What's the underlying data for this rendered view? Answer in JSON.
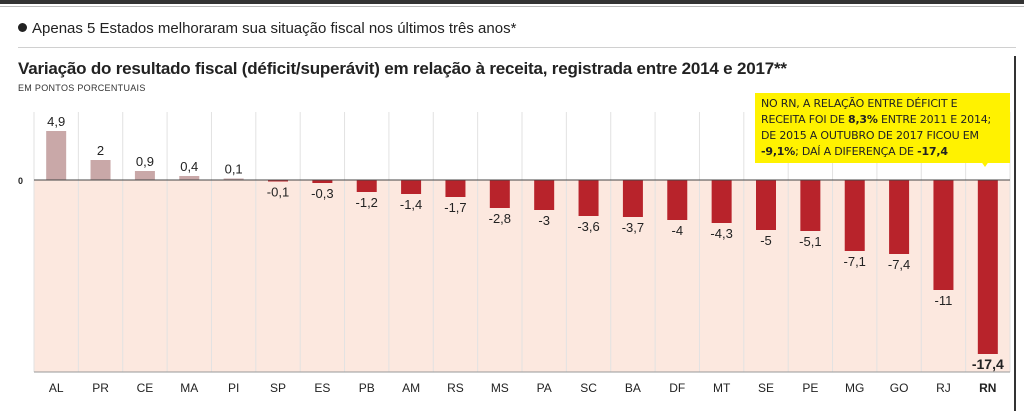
{
  "headline": "Apenas 5 Estados melhoraram sua situação fiscal nos últimos três anos*",
  "chart_data": {
    "type": "bar",
    "title": "Variação do resultado fiscal (déficit/superávit) em relação à receita, registrada entre 2014 e 2017**",
    "ylabel": "EM PONTOS PORCENTUAIS",
    "xlabel": "",
    "y_zero_label": "0",
    "categories": [
      "AL",
      "PR",
      "CE",
      "MA",
      "PI",
      "SP",
      "ES",
      "PB",
      "AM",
      "RS",
      "MS",
      "PA",
      "SC",
      "BA",
      "DF",
      "MT",
      "SE",
      "PE",
      "MG",
      "GO",
      "RJ",
      "RN"
    ],
    "values": [
      4.9,
      2,
      0.9,
      0.4,
      0.1,
      -0.1,
      -0.3,
      -1.2,
      -1.4,
      -1.7,
      -2.8,
      -3,
      -3.6,
      -3.7,
      -4,
      -4.3,
      -5,
      -5.1,
      -7.1,
      -7.4,
      -11,
      -17.4
    ],
    "value_labels": [
      "4,9",
      "2",
      "0,9",
      "0,4",
      "0,1",
      "-0,1",
      "-0,3",
      "-1,2",
      "-1,4",
      "-1,7",
      "-2,8",
      "-3",
      "-3,6",
      "-3,7",
      "-4",
      "-4,3",
      "-5",
      "-5,1",
      "-7,1",
      "-7,4",
      "-11",
      "-17,4"
    ],
    "highlight": "RN",
    "colors": {
      "positive": "#c9a8a8",
      "negative": "#b8232b",
      "background": "#fce8df",
      "callout": "#fff200"
    },
    "annotation": {
      "l1": "NO RN, A RELAÇÃO ENTRE DÉFICIT E",
      "l2a": "RECEITA FOI DE ",
      "l2b": "8,3%",
      "l2c": " ENTRE 2011 E 2014;",
      "l3": "DE 2015 A OUTUBRO DE 2017 FICOU EM",
      "l4a": "-9,1%",
      "l4b": "; DAÍ A DIFERENÇA DE ",
      "l4c": "-17,4"
    }
  }
}
